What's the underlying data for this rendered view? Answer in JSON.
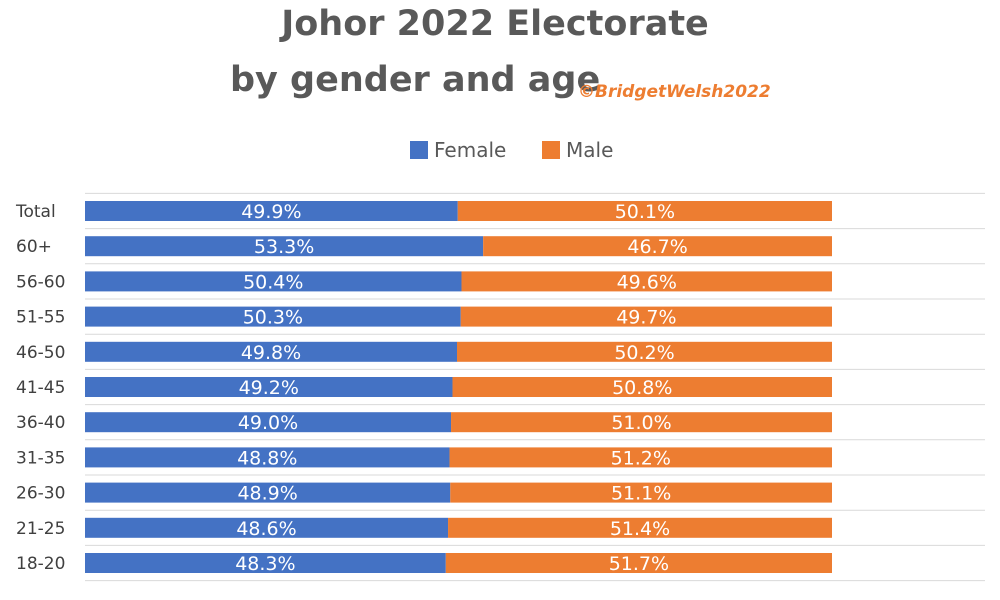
{
  "title": "Johor 2022 Electorate",
  "subtitle": "by gender and age",
  "watermark": "©BridgetWelsh2022",
  "colors": {
    "female": "#4472c4",
    "male": "#ed7d31",
    "label": "#ffffff",
    "grid": "#d9d9d9"
  },
  "legend": [
    {
      "name": "Female",
      "color": "#4472c4"
    },
    {
      "name": "Male",
      "color": "#ed7d31"
    }
  ],
  "chart_data": {
    "type": "bar",
    "orientation": "horizontal",
    "stacked": "100%",
    "categories": [
      "Total",
      "60+",
      "56-60",
      "51-55",
      "46-50",
      "41-45",
      "36-40",
      "31-35",
      "26-30",
      "21-25",
      "18-20"
    ],
    "series": [
      {
        "name": "Female",
        "values": [
          49.9,
          53.3,
          50.4,
          50.3,
          49.8,
          49.2,
          49.0,
          48.8,
          48.9,
          48.6,
          48.3
        ],
        "labels": [
          "49.9%",
          "53.3%",
          "50.4%",
          "50.3%",
          "49.8%",
          "49.2%",
          "49.0%",
          "48.8%",
          "48.9%",
          "48.6%",
          "48.3%"
        ]
      },
      {
        "name": "Male",
        "values": [
          50.1,
          46.7,
          49.6,
          49.7,
          50.2,
          50.8,
          51.0,
          51.2,
          51.1,
          51.4,
          51.7
        ],
        "labels": [
          "50.1%",
          "46.7%",
          "49.6%",
          "49.7%",
          "50.2%",
          "50.8%",
          "51.0%",
          "51.2%",
          "51.1%",
          "51.4%",
          "51.7%"
        ]
      }
    ],
    "xlim": [
      0,
      100
    ],
    "legend_position": "top",
    "grid": true
  }
}
